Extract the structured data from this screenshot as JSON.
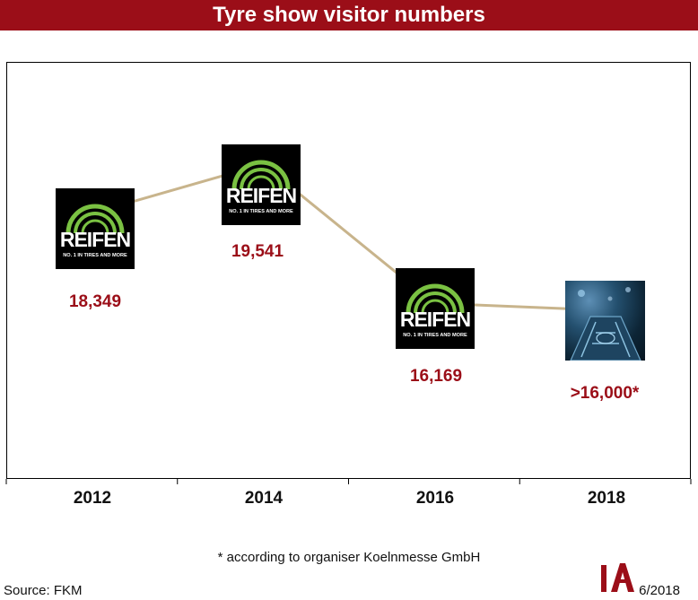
{
  "header": {
    "title": "Tyre show visitor numbers"
  },
  "chart_data": {
    "type": "line",
    "title": "Tyre show visitor numbers",
    "categories": [
      "2012",
      "2014",
      "2016",
      "2018"
    ],
    "values": [
      18349,
      19541,
      16169,
      16000
    ],
    "value_labels": [
      "18,349",
      "19,541",
      "16,169",
      ">16,000*"
    ],
    "ylim": [
      12000,
      22000
    ],
    "grid": false,
    "legend": "none",
    "markers": [
      "reifen-logo",
      "reifen-logo",
      "reifen-logo",
      "the-tire-cologne-photo"
    ],
    "line_color": "#c8b48c",
    "label_color": "#9b0e18"
  },
  "logo": {
    "word": "REIFEN",
    "tagline": "NO. 1 IN TIRES AND MORE"
  },
  "footnote": "* according to organiser Koelnmesse GmbH",
  "source": "Source: FKM",
  "date": "6/2018",
  "colors": {
    "header_bg": "#9b0e18",
    "accent": "#9b0e18",
    "logo_green": "#7ac142"
  }
}
